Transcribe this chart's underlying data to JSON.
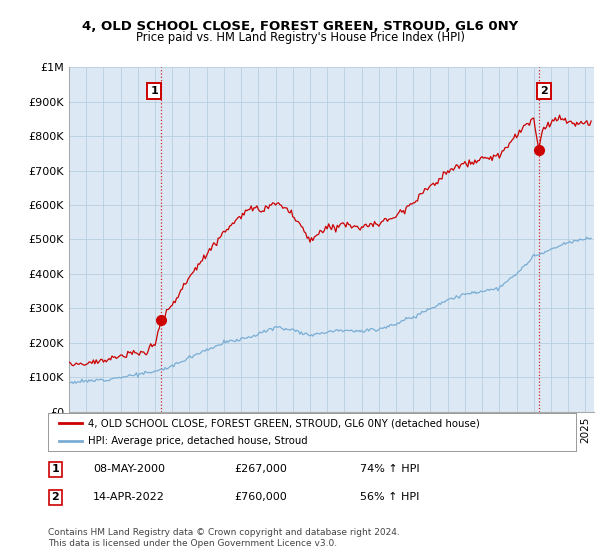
{
  "title": "4, OLD SCHOOL CLOSE, FOREST GREEN, STROUD, GL6 0NY",
  "subtitle": "Price paid vs. HM Land Registry's House Price Index (HPI)",
  "ylabel_ticks": [
    "£0",
    "£100K",
    "£200K",
    "£300K",
    "£400K",
    "£500K",
    "£600K",
    "£700K",
    "£800K",
    "£900K",
    "£1M"
  ],
  "ytick_values": [
    0,
    100000,
    200000,
    300000,
    400000,
    500000,
    600000,
    700000,
    800000,
    900000,
    1000000
  ],
  "ylim": [
    0,
    1000000
  ],
  "xlim_start": 1995.0,
  "xlim_end": 2025.5,
  "legend_line1": "4, OLD SCHOOL CLOSE, FOREST GREEN, STROUD, GL6 0NY (detached house)",
  "legend_line2": "HPI: Average price, detached house, Stroud",
  "annotation1_date": "08-MAY-2000",
  "annotation1_price": "£267,000",
  "annotation1_hpi": "74% ↑ HPI",
  "annotation2_date": "14-APR-2022",
  "annotation2_price": "£760,000",
  "annotation2_hpi": "56% ↑ HPI",
  "sale1_x": 2000.36,
  "sale1_y": 267000,
  "sale2_x": 2022.28,
  "sale2_y": 760000,
  "red_color": "#cc0000",
  "blue_color": "#7aadd4",
  "chart_bg": "#dce9f5",
  "grid_color": "#b8cfe0",
  "background_color": "#ffffff",
  "footer_text": "Contains HM Land Registry data © Crown copyright and database right 2024.\nThis data is licensed under the Open Government Licence v3.0."
}
